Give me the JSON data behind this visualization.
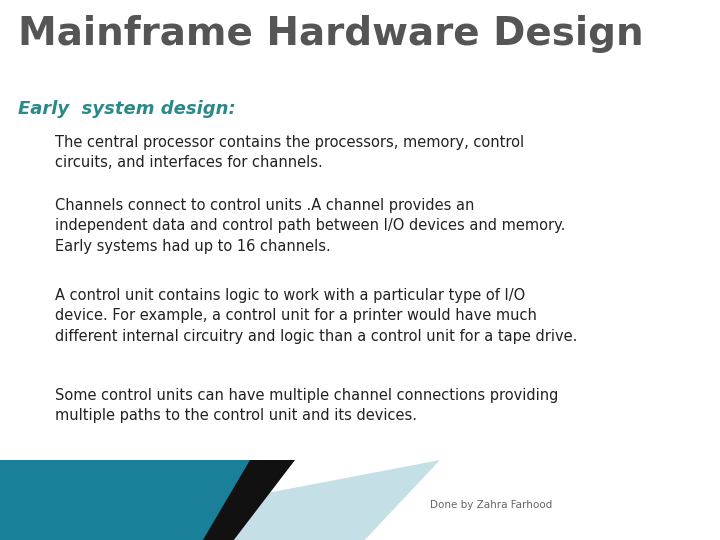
{
  "title": "Mainframe Hardware Design",
  "subtitle": "Early  system design:",
  "paragraphs": [
    "The central processor contains the processors, memory, control\ncircuits, and interfaces for channels.",
    "Channels connect to control units .A channel provides an\nindependent data and control path between I/O devices and memory.\nEarly systems had up to 16 channels.",
    "A control unit contains logic to work with a particular type of I/O\ndevice. For example, a control unit for a printer would have much\ndifferent internal circuitry and logic than a control unit for a tape drive.",
    "Some control units can have multiple channel connections providing\nmultiple paths to the control unit and its devices."
  ],
  "footer": "Done by Zahra Farhood",
  "bg_color": "#ffffff",
  "title_color": "#555555",
  "subtitle_color": "#2a8a8a",
  "body_color": "#222222",
  "footer_color": "#666666",
  "teal_color": "#1a7f99",
  "light_blue_color": "#c5dfe6",
  "black_color": "#111111",
  "title_fontsize": 28,
  "subtitle_fontsize": 13,
  "body_fontsize": 10.5,
  "footer_fontsize": 7.5
}
